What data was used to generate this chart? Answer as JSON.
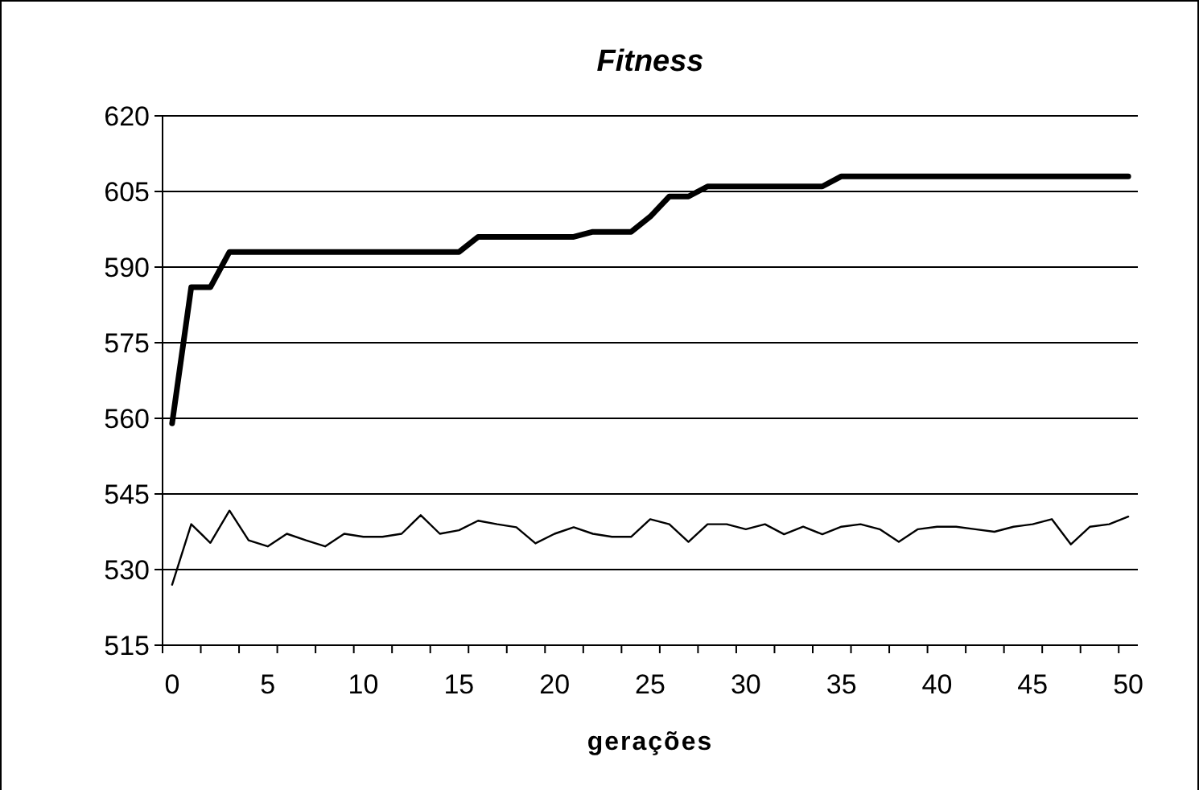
{
  "chart_data": {
    "type": "line",
    "title": "Fitness",
    "xlabel": "gerações",
    "ylim": [
      515,
      620
    ],
    "yticks": [
      515,
      530,
      545,
      560,
      575,
      590,
      605,
      620
    ],
    "grid": "y",
    "categories": [
      "0",
      null,
      null,
      null,
      null,
      "5",
      null,
      null,
      null,
      null,
      "10",
      null,
      null,
      null,
      null,
      "15",
      null,
      null,
      null,
      null,
      "20",
      null,
      null,
      null,
      null,
      "25",
      null,
      null,
      null,
      null,
      "30",
      null,
      null,
      null,
      null,
      "35",
      null,
      null,
      null,
      null,
      "40",
      null,
      null,
      null,
      null,
      "45",
      null,
      null,
      null,
      null,
      "50"
    ],
    "series": [
      {
        "color": "#000000",
        "values": [
          559,
          586,
          586,
          593,
          593,
          593,
          593,
          593,
          593,
          593,
          593,
          593,
          593,
          593,
          593,
          593,
          596,
          596,
          596,
          596,
          596,
          596,
          597,
          597,
          597,
          600,
          604,
          604,
          606,
          606,
          606,
          606,
          606,
          606,
          606,
          608,
          608,
          608,
          608,
          608,
          608,
          608,
          608,
          608,
          608,
          608,
          608,
          608,
          608,
          608,
          608
        ]
      },
      {
        "color": "#000000",
        "values": [
          527,
          539,
          535.3,
          541.7,
          535.8,
          534.6,
          537.1,
          535.8,
          534.6,
          537.1,
          536.5,
          536.5,
          537.1,
          540.8,
          537.1,
          537.8,
          539.7,
          539,
          538.4,
          535.2,
          537.1,
          538.4,
          537.1,
          536.5,
          536.5,
          540,
          539,
          535.5,
          539,
          539,
          538,
          539,
          537,
          538.5,
          537,
          538.5,
          539,
          538,
          535.5,
          538,
          538.5,
          538.5,
          538,
          537.5,
          538.5,
          539,
          540,
          535,
          538.5,
          539,
          540.5
        ]
      }
    ]
  }
}
